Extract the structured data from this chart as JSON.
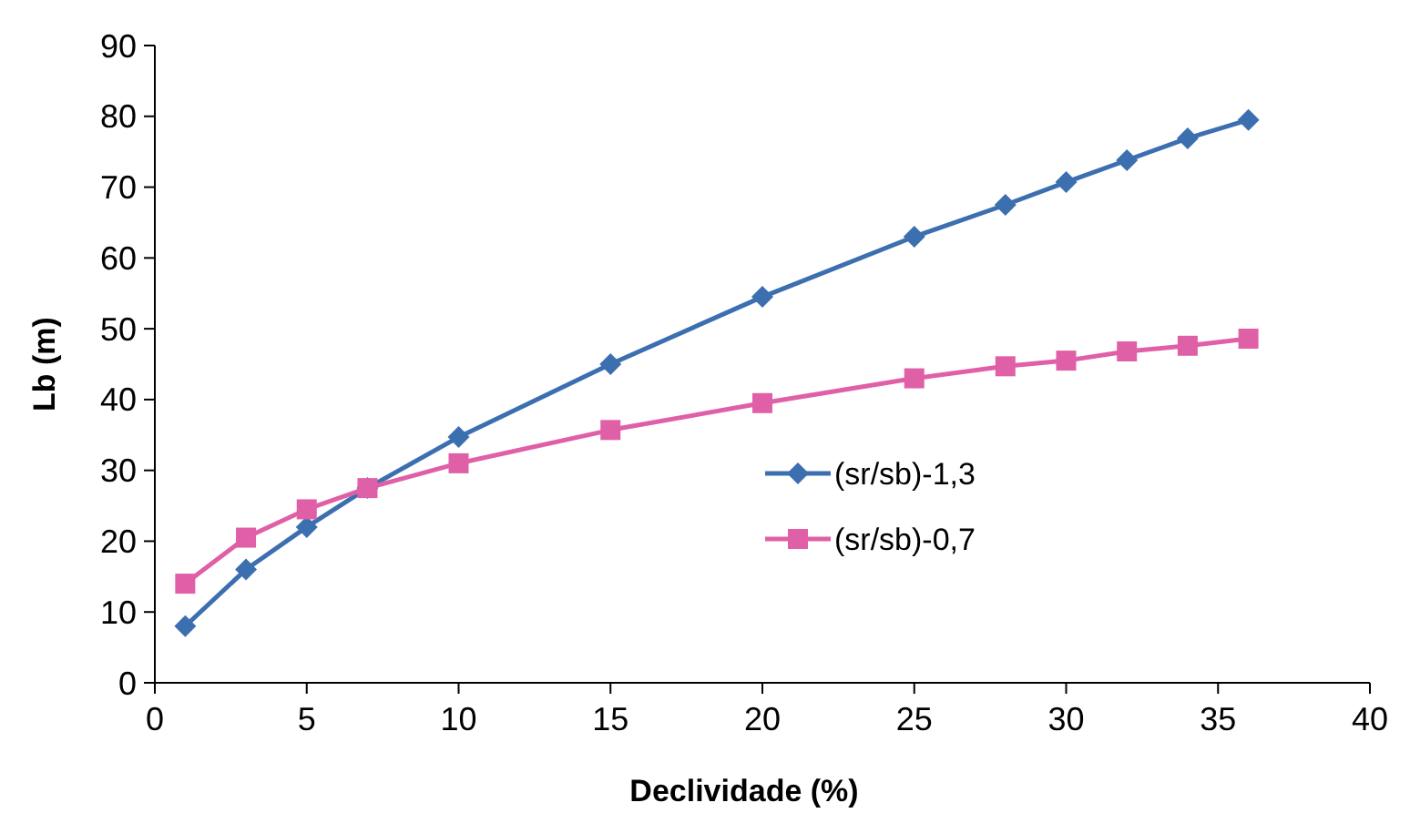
{
  "chart_data": {
    "type": "line",
    "xlabel": "Declividade (%)",
    "ylabel": "Lb (m)",
    "x": [
      1,
      3,
      5,
      7,
      10,
      15,
      20,
      25,
      28,
      30,
      32,
      34,
      36
    ],
    "series": [
      {
        "name": "(sr/sb)-1,3",
        "color": "#3c6fb0",
        "marker": "diamond",
        "values": [
          8,
          16,
          22,
          27.5,
          34.7,
          45,
          54.5,
          63,
          67.5,
          70.7,
          73.8,
          76.9,
          79.5
        ]
      },
      {
        "name": "(sr/sb)-0,7",
        "color": "#e060a8",
        "marker": "square",
        "values": [
          14,
          20.5,
          24.5,
          27.5,
          31,
          35.7,
          39.5,
          43,
          44.7,
          45.5,
          46.8,
          47.6,
          48.6
        ]
      }
    ],
    "xlim": [
      0,
      40
    ],
    "xticks": [
      0,
      5,
      10,
      15,
      20,
      25,
      30,
      35,
      40
    ],
    "ylim": [
      0,
      90
    ],
    "yticks": [
      0,
      10,
      20,
      30,
      40,
      50,
      60,
      70,
      80,
      90
    ],
    "legend": "right",
    "grid": false
  }
}
